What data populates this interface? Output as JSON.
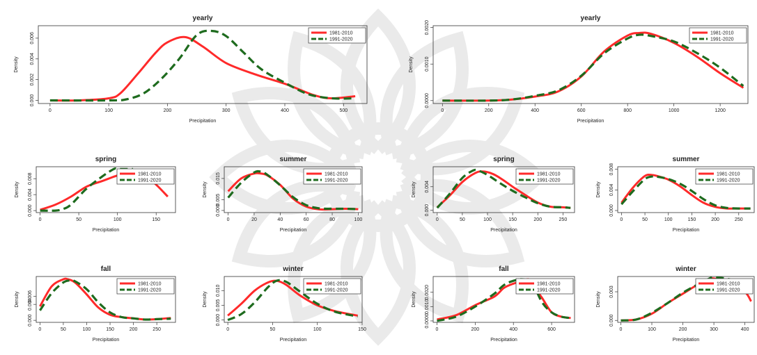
{
  "colors": {
    "series_a": "#ff2a2a",
    "series_b": "#1e6b1e",
    "watermark": "#d9d9d9"
  },
  "watermark_icon": "star-rosette-watermark",
  "chart_data": [
    {
      "id": "p1",
      "type": "line",
      "title": "yearly",
      "xlabel": "Precipitation",
      "ylabel": "Density",
      "xlim": [
        -20,
        540
      ],
      "ylim": [
        -0.0003,
        0.0072
      ],
      "xticks": [
        0,
        100,
        200,
        300,
        400,
        500
      ],
      "yticks": [
        0,
        0.002,
        0.004,
        0.006
      ],
      "xticklabels": [
        "0",
        "100",
        "200",
        "300",
        "400",
        "500"
      ],
      "yticklabels": [
        "0.000",
        "0.002",
        "0.004",
        "0.006"
      ],
      "legend": "top-right",
      "grid": false,
      "series": [
        {
          "name": "1981-2010",
          "x": [
            0,
            50,
            100,
            120,
            150,
            180,
            200,
            230,
            260,
            300,
            350,
            400,
            450,
            480,
            520
          ],
          "y": [
            0,
            0,
            0.0002,
            0.0007,
            0.0026,
            0.0046,
            0.0056,
            0.0061,
            0.0052,
            0.0036,
            0.0025,
            0.0016,
            0.0005,
            0.0002,
            0.0004
          ]
        },
        {
          "name": "1991-2020",
          "x": [
            0,
            100,
            130,
            160,
            190,
            220,
            250,
            275,
            300,
            330,
            360,
            400,
            440,
            480,
            520
          ],
          "y": [
            0,
            0,
            0.0001,
            0.0007,
            0.0021,
            0.004,
            0.0063,
            0.0067,
            0.0062,
            0.0046,
            0.003,
            0.0017,
            0.0006,
            0.0002,
            0.0002
          ]
        }
      ]
    },
    {
      "id": "p2",
      "type": "line",
      "title": "yearly",
      "xlabel": "Precipitation",
      "ylabel": "Density",
      "xlim": [
        -40,
        1320
      ],
      "ylim": [
        -8e-05,
        0.00205
      ],
      "xticks": [
        0,
        200,
        400,
        600,
        800,
        1000,
        1200
      ],
      "yticks": [
        0,
        0.001,
        0.002
      ],
      "xticklabels": [
        "0",
        "200",
        "400",
        "600",
        "800",
        "1000",
        "1200"
      ],
      "yticklabels": [
        "0.0000",
        "0.0010",
        "0.0020"
      ],
      "legend": "top-right",
      "grid": false,
      "series": [
        {
          "name": "1981-2010",
          "x": [
            0,
            200,
            300,
            400,
            500,
            600,
            700,
            800,
            850,
            900,
            1000,
            1100,
            1200,
            1300
          ],
          "y": [
            0,
            0,
            3e-05,
            0.00011,
            0.00025,
            0.00066,
            0.00135,
            0.00178,
            0.00185,
            0.00183,
            0.00158,
            0.0012,
            0.00075,
            0.00035
          ]
        },
        {
          "name": "1991-2020",
          "x": [
            0,
            200,
            300,
            400,
            500,
            600,
            700,
            800,
            850,
            900,
            1000,
            1100,
            1200,
            1300
          ],
          "y": [
            0,
            0,
            3e-05,
            0.00013,
            0.00028,
            0.00068,
            0.0013,
            0.0017,
            0.0018,
            0.00177,
            0.00162,
            0.0013,
            0.0009,
            0.0004
          ]
        }
      ]
    },
    {
      "id": "p3",
      "type": "line",
      "title": "spring",
      "xlabel": "Precipitation",
      "ylabel": "Density",
      "xlim": [
        -5,
        175
      ],
      "ylim": [
        -0.0005,
        0.011
      ],
      "xticks": [
        0,
        50,
        100,
        150
      ],
      "yticks": [
        0,
        0.004,
        0.008
      ],
      "xticklabels": [
        "0",
        "50",
        "100",
        "150"
      ],
      "yticklabels": [
        "0.000",
        "0.004",
        "0.008"
      ],
      "legend": "top-right",
      "grid": false,
      "series": [
        {
          "name": "1981-2010",
          "x": [
            0,
            20,
            40,
            60,
            80,
            100,
            110,
            120,
            135,
            150,
            165
          ],
          "y": [
            0.0002,
            0.0015,
            0.0035,
            0.006,
            0.0074,
            0.0088,
            0.0092,
            0.0095,
            0.0088,
            0.0065,
            0.0035
          ]
        },
        {
          "name": "1991-2020",
          "x": [
            0,
            20,
            30,
            40,
            60,
            80,
            95,
            100,
            110,
            120
          ],
          "y": [
            0,
            0,
            0.0004,
            0.0015,
            0.0055,
            0.0085,
            0.0104,
            0.0104,
            0.0104,
            0.0104
          ]
        }
      ]
    },
    {
      "id": "p4",
      "type": "line",
      "title": "summer",
      "xlabel": "Precipitation",
      "ylabel": "Density",
      "xlim": [
        -3,
        103
      ],
      "ylim": [
        -0.001,
        0.0205
      ],
      "xticks": [
        0,
        20,
        40,
        60,
        80,
        100
      ],
      "yticks": [
        0,
        0.005,
        0.015
      ],
      "xticklabels": [
        "0",
        "20",
        "40",
        "60",
        "80",
        "100"
      ],
      "yticklabels": [
        "0.000",
        "0.005",
        "0.015"
      ],
      "legend": "top-right",
      "grid": false,
      "series": [
        {
          "name": "1981-2010",
          "x": [
            0,
            10,
            20,
            25,
            30,
            40,
            50,
            60,
            70,
            80,
            90,
            100
          ],
          "y": [
            0.009,
            0.015,
            0.0173,
            0.0173,
            0.0165,
            0.012,
            0.0055,
            0.0018,
            0.0005,
            0.0006,
            0.0008,
            0.0006
          ]
        },
        {
          "name": "1991-2020",
          "x": [
            0,
            10,
            20,
            25,
            30,
            40,
            50,
            60,
            70,
            80,
            90,
            100
          ],
          "y": [
            0.006,
            0.013,
            0.0178,
            0.0182,
            0.0168,
            0.0118,
            0.0062,
            0.0025,
            0.001,
            0.0008,
            0.0008,
            0.0006
          ]
        }
      ]
    },
    {
      "id": "p5",
      "type": "line",
      "title": "spring",
      "xlabel": "Precipitation",
      "ylabel": "Density",
      "xlim": [
        -8,
        273
      ],
      "ylim": [
        -0.0004,
        0.0074
      ],
      "xticks": [
        0,
        50,
        100,
        150,
        200,
        250
      ],
      "yticks": [
        0,
        0.004
      ],
      "xticklabels": [
        "0",
        "50",
        "100",
        "150",
        "200",
        "250"
      ],
      "yticklabels": [
        "0.000",
        "0.004"
      ],
      "legend": "top-right",
      "grid": false,
      "series": [
        {
          "name": "1981-2010",
          "x": [
            0,
            25,
            50,
            75,
            90,
            110,
            130,
            150,
            175,
            200,
            225,
            250,
            265
          ],
          "y": [
            0.0005,
            0.0025,
            0.0048,
            0.0063,
            0.0066,
            0.0062,
            0.0052,
            0.004,
            0.0026,
            0.0013,
            0.0006,
            0.0005,
            0.0004
          ]
        },
        {
          "name": "1991-2020",
          "x": [
            0,
            25,
            50,
            70,
            80,
            100,
            125,
            150,
            175,
            200,
            225,
            250,
            265
          ],
          "y": [
            0.0004,
            0.0028,
            0.0055,
            0.0067,
            0.0068,
            0.006,
            0.0046,
            0.0033,
            0.0022,
            0.0012,
            0.0006,
            0.0005,
            0.0004
          ]
        }
      ]
    },
    {
      "id": "p6",
      "type": "line",
      "title": "summer",
      "xlabel": "Precipitation",
      "ylabel": "Density",
      "xlim": [
        -8,
        283
      ],
      "ylim": [
        -0.0004,
        0.0085
      ],
      "xticks": [
        0,
        50,
        100,
        150,
        200,
        250
      ],
      "yticks": [
        0,
        0.004,
        0.008
      ],
      "xticklabels": [
        "0",
        "50",
        "100",
        "150",
        "200",
        "250"
      ],
      "yticklabels": [
        "0.000",
        "0.004",
        "0.008"
      ],
      "legend": "top-right",
      "grid": false,
      "series": [
        {
          "name": "1981-2010",
          "x": [
            0,
            25,
            50,
            65,
            80,
            100,
            125,
            150,
            175,
            200,
            225,
            250,
            275
          ],
          "y": [
            0.0015,
            0.0045,
            0.0067,
            0.0069,
            0.0066,
            0.006,
            0.0047,
            0.003,
            0.0015,
            0.0007,
            0.0004,
            0.0004,
            0.0004
          ]
        },
        {
          "name": "1991-2020",
          "x": [
            0,
            25,
            50,
            65,
            80,
            100,
            125,
            150,
            175,
            200,
            225,
            250,
            275
          ],
          "y": [
            0.0012,
            0.0038,
            0.0061,
            0.0066,
            0.0065,
            0.0061,
            0.0052,
            0.0038,
            0.0022,
            0.001,
            0.0005,
            0.0004,
            0.0004
          ]
        }
      ]
    },
    {
      "id": "p7",
      "type": "line",
      "title": "fall",
      "xlabel": "Precipitation",
      "ylabel": "Density",
      "xlim": [
        -8,
        290
      ],
      "ylim": [
        -0.0005,
        0.011
      ],
      "xticks": [
        0,
        50,
        100,
        150,
        200,
        250
      ],
      "yticks": [
        0,
        0.004,
        0.006
      ],
      "xticklabels": [
        "0",
        "50",
        "100",
        "150",
        "200",
        "250"
      ],
      "yticklabels": [
        "0.000",
        "0.004",
        "0.006"
      ],
      "legend": "top-right",
      "grid": false,
      "series": [
        {
          "name": "1981-2010",
          "x": [
            0,
            25,
            50,
            60,
            75,
            100,
            125,
            150,
            175,
            200,
            225,
            250,
            280
          ],
          "y": [
            0.0035,
            0.0085,
            0.0103,
            0.0103,
            0.0095,
            0.0065,
            0.0032,
            0.0014,
            0.0008,
            0.0005,
            0.0002,
            0.0003,
            0.0006
          ]
        },
        {
          "name": "1991-2020",
          "x": [
            0,
            25,
            50,
            65,
            75,
            100,
            125,
            150,
            175,
            200,
            225,
            250,
            280
          ],
          "y": [
            0.0025,
            0.0068,
            0.0095,
            0.01,
            0.0098,
            0.0078,
            0.0045,
            0.002,
            0.0008,
            0.0005,
            0.0002,
            0.0003,
            0.0004
          ]
        }
      ]
    },
    {
      "id": "p8",
      "type": "line",
      "title": "winter",
      "xlabel": "Precipitation",
      "ylabel": "Density",
      "xlim": [
        -4,
        150
      ],
      "ylim": [
        -0.0008,
        0.0148
      ],
      "xticks": [
        0,
        50,
        100,
        150
      ],
      "yticks": [
        0,
        0.005,
        0.01
      ],
      "xticklabels": [
        "0",
        "50",
        "100",
        "150"
      ],
      "yticklabels": [
        "0.000",
        "0.005",
        "0.010"
      ],
      "legend": "top-right",
      "grid": false,
      "series": [
        {
          "name": "1981-2010",
          "x": [
            0,
            15,
            30,
            45,
            55,
            65,
            80,
            100,
            120,
            145
          ],
          "y": [
            0.0015,
            0.0055,
            0.01,
            0.0128,
            0.0133,
            0.012,
            0.0085,
            0.005,
            0.003,
            0.0015
          ]
        },
        {
          "name": "1991-2020",
          "x": [
            0,
            15,
            30,
            45,
            55,
            65,
            80,
            100,
            120,
            145
          ],
          "y": [
            0,
            0.002,
            0.006,
            0.0112,
            0.0134,
            0.013,
            0.0098,
            0.0055,
            0.0028,
            0.0012
          ]
        }
      ]
    },
    {
      "id": "p9",
      "type": "line",
      "title": "fall",
      "xlabel": "Precipitation",
      "ylabel": "Density",
      "xlim": [
        -20,
        720
      ],
      "ylim": [
        -0.0001,
        0.0031
      ],
      "xticks": [
        0,
        200,
        400,
        600
      ],
      "yticks": [
        0,
        0.001,
        0.002
      ],
      "xticklabels": [
        "0",
        "200",
        "400",
        "600"
      ],
      "yticklabels": [
        "0.0000",
        "0.0010",
        "0.0020"
      ],
      "legend": "top-right",
      "grid": false,
      "series": [
        {
          "name": "1981-2010",
          "x": [
            0,
            100,
            200,
            300,
            350,
            400,
            450,
            480,
            500,
            550,
            600,
            650,
            700
          ],
          "y": [
            0.0001,
            0.0004,
            0.0011,
            0.0017,
            0.0023,
            0.0026,
            0.0028,
            0.0029,
            0.0025,
            0.0016,
            0.0006,
            0.0003,
            0.0002
          ]
        },
        {
          "name": "1991-2020",
          "x": [
            0,
            100,
            200,
            300,
            350,
            400,
            450,
            500,
            550,
            600,
            650,
            700
          ],
          "y": [
            0,
            0.0003,
            0.001,
            0.0019,
            0.0025,
            0.0028,
            0.0029,
            0.0026,
            0.0013,
            0.0006,
            0.0003,
            0.0002
          ]
        }
      ]
    },
    {
      "id": "p10",
      "type": "line",
      "title": "winter",
      "xlabel": "Precipitation",
      "ylabel": "Density",
      "xlim": [
        -10,
        430
      ],
      "ylim": [
        -0.0002,
        0.0046
      ],
      "xticks": [
        0,
        100,
        200,
        300,
        400
      ],
      "yticks": [
        0,
        0.003
      ],
      "xticklabels": [
        "0",
        "100",
        "200",
        "300",
        "400"
      ],
      "yticklabels": [
        "0.000",
        "0.003"
      ],
      "legend": "top-right",
      "grid": false,
      "series": [
        {
          "name": "1981-2010",
          "x": [
            0,
            50,
            100,
            150,
            200,
            250,
            280,
            300,
            350,
            400,
            420
          ],
          "y": [
            0,
            0.0001,
            0.0007,
            0.0018,
            0.0028,
            0.0038,
            0.0043,
            0.0044,
            0.004,
            0.003,
            0.002
          ]
        },
        {
          "name": "1991-2020",
          "x": [
            0,
            50,
            100,
            150,
            200,
            250,
            280,
            300,
            350,
            400,
            420
          ],
          "y": [
            0,
            0.0001,
            0.0008,
            0.0018,
            0.0029,
            0.0038,
            0.0043,
            0.0045,
            0.0043,
            0.0036,
            0.003
          ]
        }
      ]
    }
  ]
}
